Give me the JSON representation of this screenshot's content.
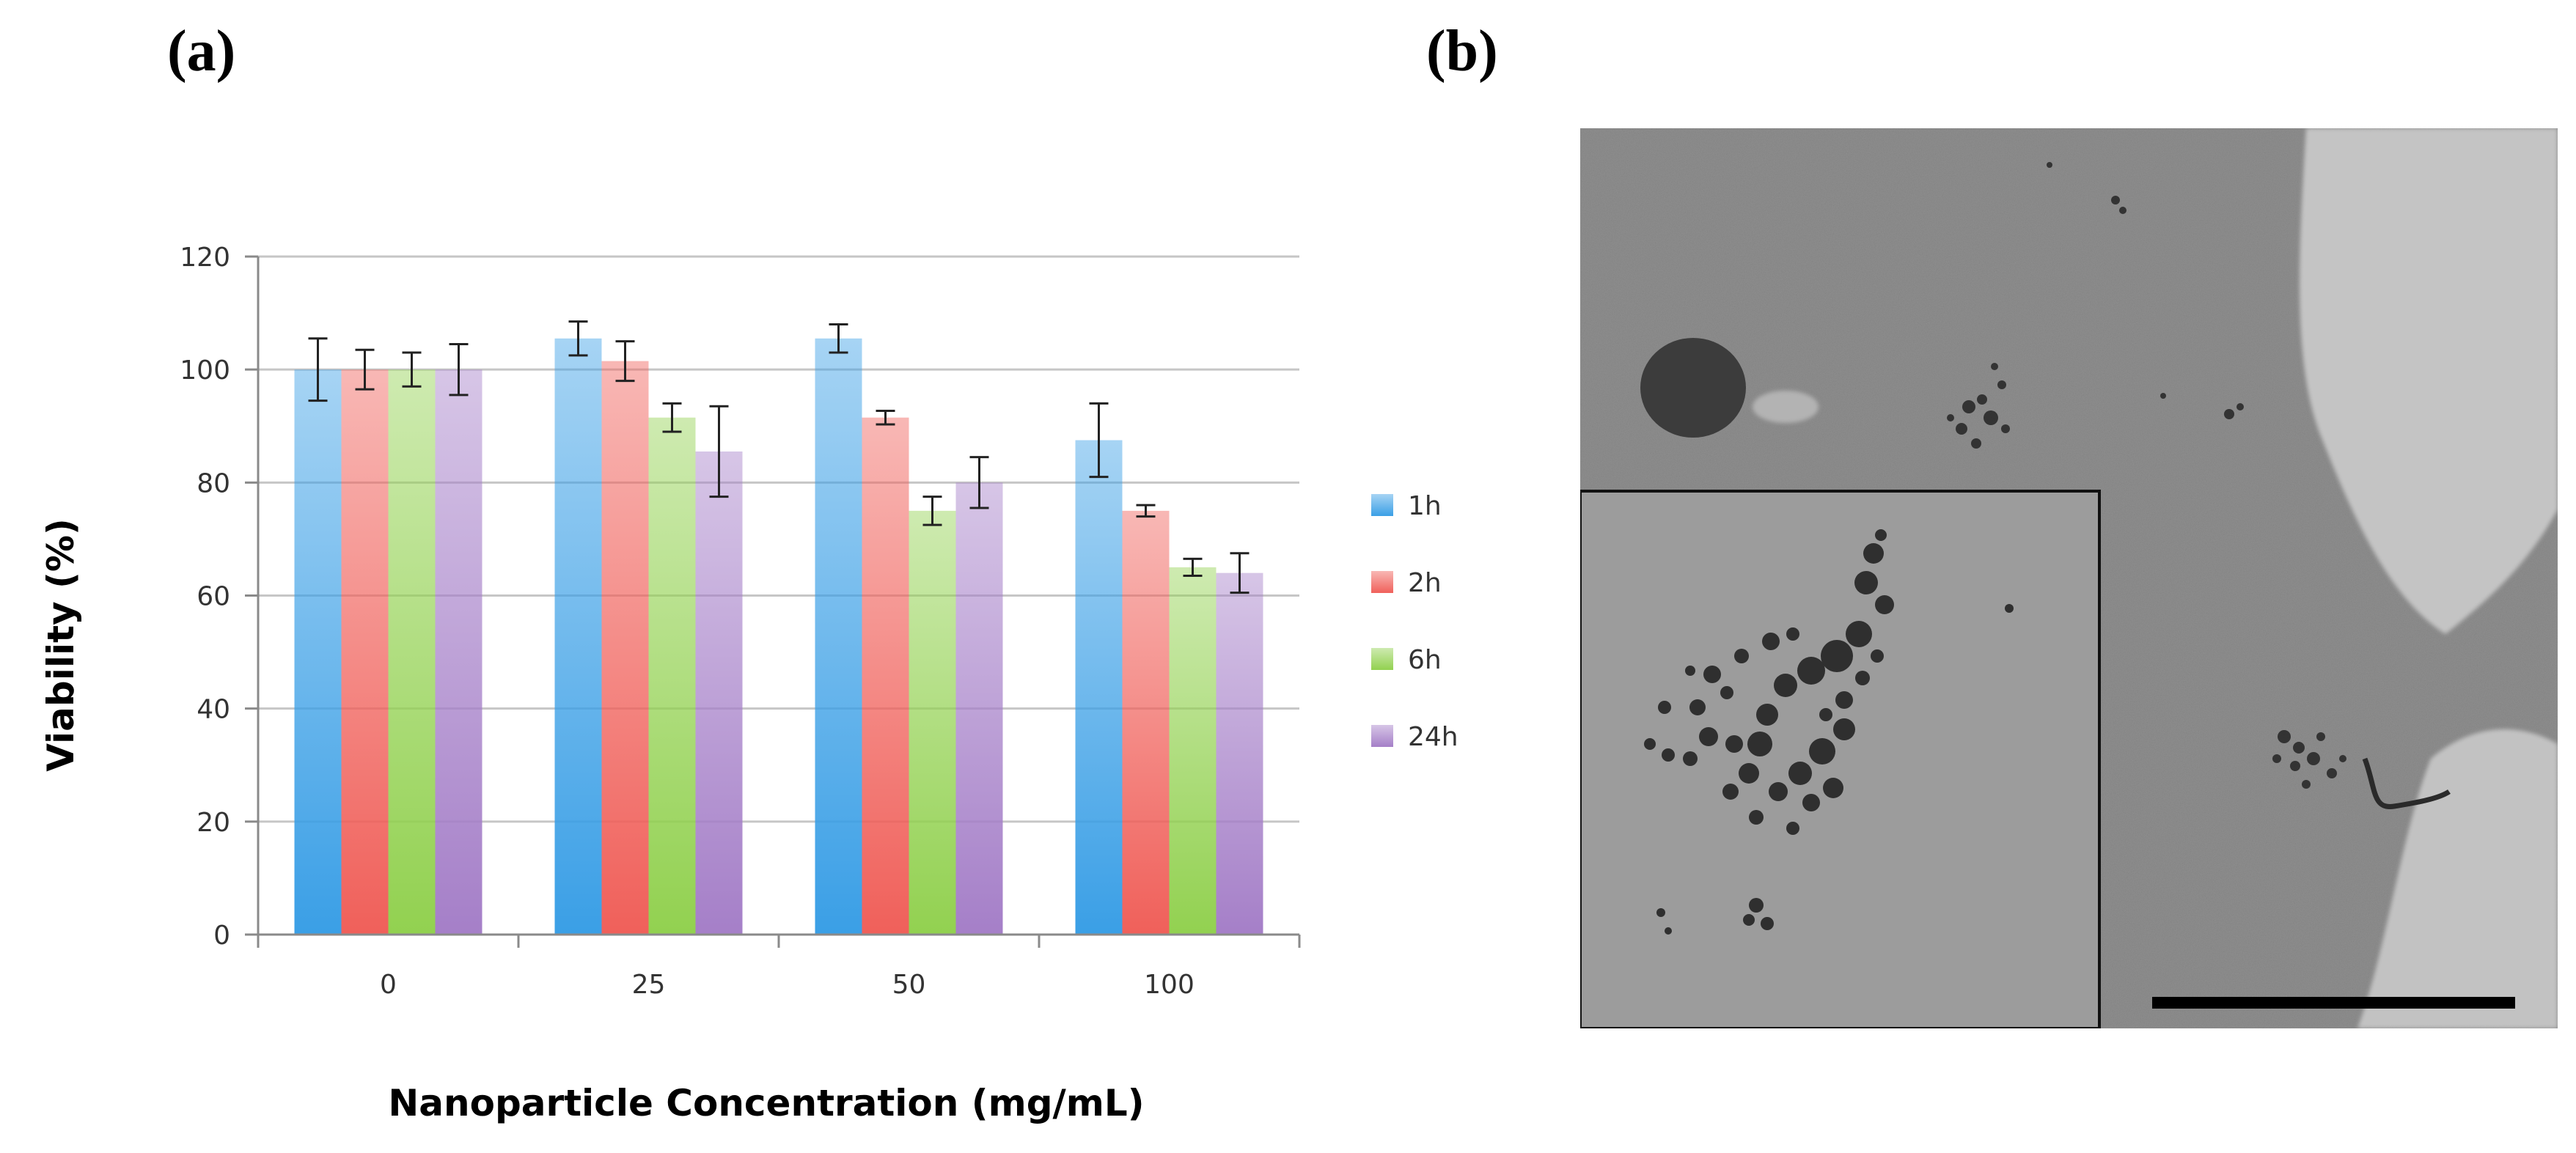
{
  "figure": {
    "panel_a_label": "(a)",
    "panel_b_label": "(b)"
  },
  "chart_data": {
    "type": "bar",
    "title": "",
    "xlabel": "Nanoparticle Concentration (mg/mL)",
    "ylabel": "Viability (%)",
    "ylim": [
      0,
      120
    ],
    "yticks": [
      "0",
      "20",
      "40",
      "60",
      "80",
      "100",
      "120"
    ],
    "categories": [
      "0",
      "25",
      "50",
      "100"
    ],
    "grid": true,
    "legend_position": "right",
    "series": [
      {
        "name": "1h",
        "color": "#3a9fe6",
        "values": [
          100,
          105.5,
          105.5,
          87.5
        ],
        "errors": [
          5.5,
          3,
          2.5,
          6.5
        ]
      },
      {
        "name": "2h",
        "color": "#f0605a",
        "values": [
          100,
          101.5,
          91.5,
          75
        ],
        "errors": [
          3.5,
          3.5,
          1.2,
          1
        ]
      },
      {
        "name": "6h",
        "color": "#92d150",
        "values": [
          100,
          91.5,
          75,
          65
        ],
        "errors": [
          3,
          2.5,
          2.5,
          1.5
        ]
      },
      {
        "name": "24h",
        "color": "#a57fc8",
        "values": [
          100,
          85.5,
          80,
          64
        ],
        "errors": [
          4.5,
          8,
          4.5,
          3.5
        ]
      }
    ]
  },
  "image_panel": {
    "description_name": "tem-micrograph"
  }
}
